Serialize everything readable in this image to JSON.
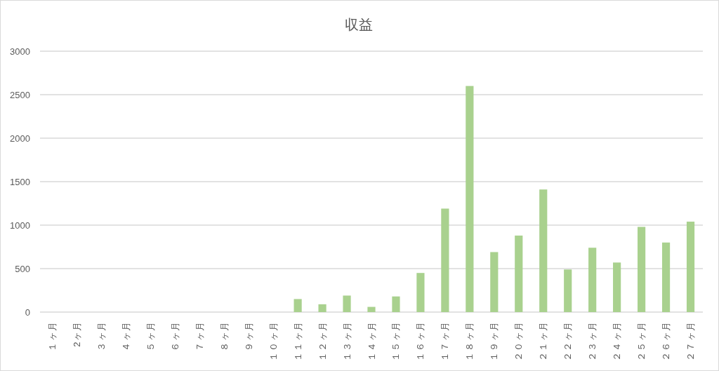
{
  "chart_data": {
    "type": "bar",
    "title": "収益",
    "categories": [
      "１ヶ月",
      "2ヶ月",
      "３ヶ月",
      "４ヶ月",
      "５ヶ月",
      "６ヶ月",
      "７ヶ月",
      "８ヶ月",
      "９ヶ月",
      "１０ヶ月",
      "１１ヶ月",
      "１２ヶ月",
      "１３ヶ月",
      "１４ヶ月",
      "１５ヶ月",
      "１６ヶ月",
      "１７ヶ月",
      "１８ヶ月",
      "１９ヶ月",
      "２０ヶ月",
      "２１ヶ月",
      "２２ヶ月",
      "２３ヶ月",
      "２４ヶ月",
      "２５ヶ月",
      "２６ヶ月",
      "２７ヶ月"
    ],
    "values": [
      0,
      0,
      0,
      0,
      0,
      0,
      0,
      0,
      0,
      0,
      150,
      90,
      190,
      60,
      180,
      450,
      1190,
      2600,
      690,
      880,
      1410,
      490,
      740,
      570,
      980,
      800,
      1040
    ],
    "color": "#a9d18e",
    "ylim": [
      0,
      3000
    ],
    "yticks": [
      0,
      500,
      1000,
      1500,
      2000,
      2500,
      3000
    ],
    "grid": "y"
  }
}
